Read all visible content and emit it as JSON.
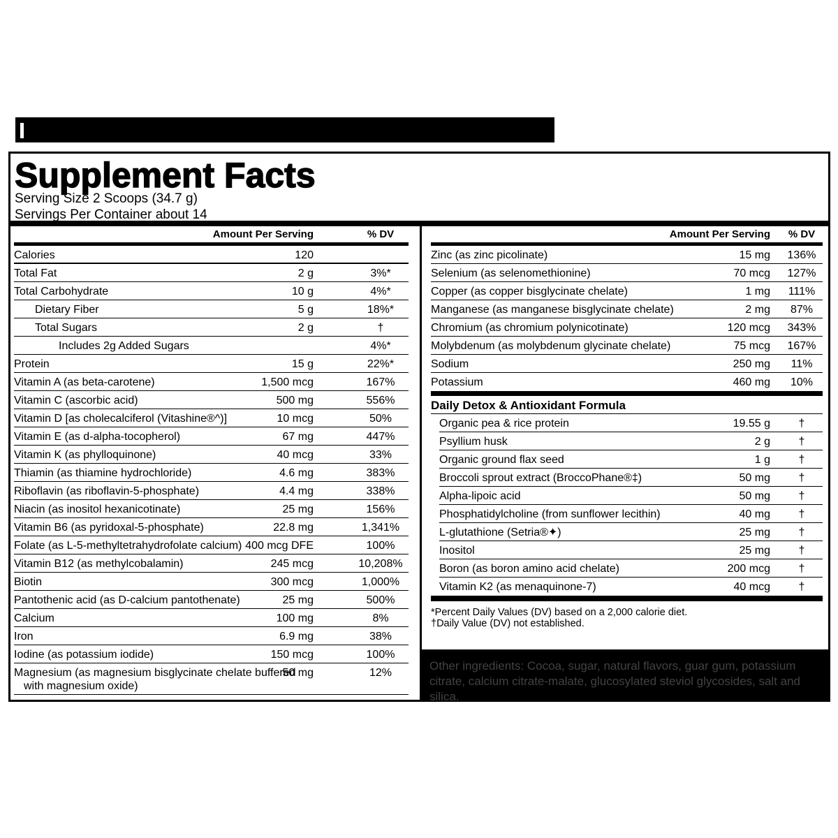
{
  "colors": {
    "ink": "#000000",
    "ingredients_text": "#424242",
    "background": "#ffffff"
  },
  "header": {
    "title": "Supplement Facts",
    "serving_size": "Serving Size 2 Scoops (34.7 g)",
    "servings_per_container": "Servings Per Container about 14"
  },
  "columns_header": {
    "amount": "Amount Per Serving",
    "dv": "% DV"
  },
  "left_table": {
    "rows": [
      {
        "name": "Calories",
        "amount": "120",
        "dv": "",
        "indent": 0
      },
      {
        "name": "Total Fat",
        "amount": "2 g",
        "dv": "3%*",
        "indent": 0
      },
      {
        "name": "Total Carbohydrate",
        "amount": "10 g",
        "dv": "4%*",
        "indent": 0
      },
      {
        "name": "Dietary Fiber",
        "amount": "5 g",
        "dv": "18%*",
        "indent": 1
      },
      {
        "name": "Total Sugars",
        "amount": "2 g",
        "dv": "†",
        "indent": 1
      },
      {
        "name": "Includes 2g Added Sugars",
        "amount": "",
        "dv": "4%*",
        "indent": 2
      },
      {
        "name": "Protein",
        "amount": "15 g",
        "dv": "22%*",
        "indent": 0
      },
      {
        "name": "Vitamin A (as beta-carotene)",
        "amount": "1,500 mcg",
        "dv": "167%",
        "indent": 0
      },
      {
        "name": "Vitamin C (ascorbic acid)",
        "amount": "500 mg",
        "dv": "556%",
        "indent": 0
      },
      {
        "name": "Vitamin D [as cholecalciferol (Vitashine®^)]",
        "amount": "10 mcg",
        "dv": "50%",
        "indent": 0
      },
      {
        "name": "Vitamin E (as d-alpha-tocopherol)",
        "amount": "67 mg",
        "dv": "447%",
        "indent": 0
      },
      {
        "name": "Vitamin K (as phylloquinone)",
        "amount": "40 mcg",
        "dv": "33%",
        "indent": 0
      },
      {
        "name": "Thiamin (as thiamine hydrochloride)",
        "amount": "4.6 mg",
        "dv": "383%",
        "indent": 0
      },
      {
        "name": "Riboflavin (as riboflavin-5-phosphate)",
        "amount": "4.4 mg",
        "dv": "338%",
        "indent": 0
      },
      {
        "name": "Niacin (as inositol hexanicotinate)",
        "amount": "25 mg",
        "dv": "156%",
        "indent": 0
      },
      {
        "name": "Vitamin B6 (as pyridoxal-5-phosphate)",
        "amount": "22.8 mg",
        "dv": "1,341%",
        "indent": 0
      },
      {
        "name": "Folate (as L-5-methyltetrahydrofolate calcium)",
        "amount": "400 mcg DFE",
        "dv": "100%",
        "indent": 0
      },
      {
        "name": "Vitamin B12 (as methylcobalamin)",
        "amount": "245 mcg",
        "dv": "10,208%",
        "indent": 0
      },
      {
        "name": "Biotin",
        "amount": "300 mcg",
        "dv": "1,000%",
        "indent": 0
      },
      {
        "name": "Pantothenic acid (as D-calcium pantothenate)",
        "amount": "25 mg",
        "dv": "500%",
        "indent": 0
      },
      {
        "name": "Calcium",
        "amount": "100 mg",
        "dv": "8%",
        "indent": 0
      },
      {
        "name": "Iron",
        "amount": "6.9 mg",
        "dv": "38%",
        "indent": 0
      },
      {
        "name": "Iodine (as potassium iodide)",
        "amount": "150 mcg",
        "dv": "100%",
        "indent": 0
      },
      {
        "name": "Magnesium (as magnesium bisglycinate chelate buffered with magnesium oxide)",
        "amount": "50 mg",
        "dv": "12%",
        "indent": 0
      }
    ]
  },
  "right_table": {
    "rows": [
      {
        "name": "Zinc (as zinc picolinate)",
        "amount": "15 mg",
        "dv": "136%",
        "indent": 0
      },
      {
        "name": "Selenium (as selenomethionine)",
        "amount": "70 mcg",
        "dv": "127%",
        "indent": 0
      },
      {
        "name": "Copper (as copper bisglycinate chelate)",
        "amount": "1 mg",
        "dv": "111%",
        "indent": 0
      },
      {
        "name": "Manganese (as manganese bisglycinate chelate)",
        "amount": "2 mg",
        "dv": "87%",
        "indent": 0
      },
      {
        "name": "Chromium (as chromium polynicotinate)",
        "amount": "120 mcg",
        "dv": "343%",
        "indent": 0
      },
      {
        "name": "Molybdenum (as molybdenum glycinate chelate)",
        "amount": "75 mcg",
        "dv": "167%",
        "indent": 0
      },
      {
        "name": "Sodium",
        "amount": "250 mg",
        "dv": "11%",
        "indent": 0
      },
      {
        "name": "Potassium",
        "amount": "460 mg",
        "dv": "10%",
        "indent": 0
      }
    ],
    "subsection": {
      "title": "Daily Detox & Antioxidant Formula",
      "rows": [
        {
          "name": "Organic pea & rice protein",
          "amount": "19.55 g",
          "dv": "†",
          "indent": 0
        },
        {
          "name": "Psyllium husk",
          "amount": "2 g",
          "dv": "†",
          "indent": 0
        },
        {
          "name": "Organic ground flax seed",
          "amount": "1 g",
          "dv": "†",
          "indent": 0
        },
        {
          "name": "Broccoli sprout extract (BroccoPhane®‡)",
          "amount": "50 mg",
          "dv": "†",
          "indent": 0
        },
        {
          "name": "Alpha-lipoic acid",
          "amount": "50 mg",
          "dv": "†",
          "indent": 0
        },
        {
          "name": "Phosphatidylcholine (from sunflower lecithin)",
          "amount": "40 mg",
          "dv": "†",
          "indent": 0
        },
        {
          "name": "L-glutathione (Setria®✦)",
          "amount": "25 mg",
          "dv": "†",
          "indent": 0
        },
        {
          "name": "Inositol",
          "amount": "25 mg",
          "dv": "†",
          "indent": 0
        },
        {
          "name": "Boron (as boron amino acid chelate)",
          "amount": "200 mcg",
          "dv": "†",
          "indent": 0
        },
        {
          "name": "Vitamin K2 (as menaquinone-7)",
          "amount": "40 mcg",
          "dv": "†",
          "indent": 0
        }
      ]
    }
  },
  "footnotes": {
    "percent_dv": "*Percent Daily Values (DV) based on a 2,000 calorie diet.",
    "not_established": "†Daily Value (DV) not established."
  },
  "other_ingredients": "Other ingredients: Cocoa, sugar, natural flavors, guar gum, potassium citrate, calcium citrate-malate, glucosylated steviol glycosides, salt and silica."
}
